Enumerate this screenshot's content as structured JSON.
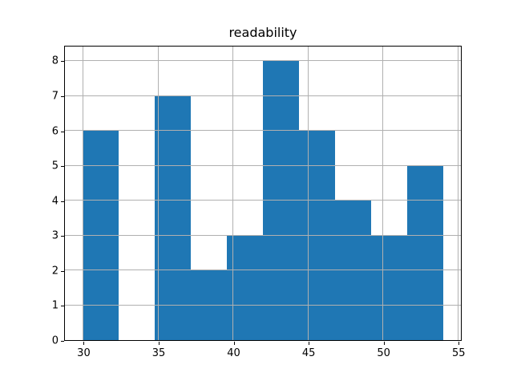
{
  "title": "readability",
  "colors": {
    "bar": "#1f77b4",
    "grid": "#b0b0b0",
    "spine": "#000000",
    "background": "#ffffff",
    "text": "#000000"
  },
  "chart_data": {
    "type": "bar",
    "subtype": "histogram",
    "title": "readability",
    "xlabel": "",
    "ylabel": "",
    "bin_edges": [
      30,
      32.4,
      34.8,
      37.2,
      39.6,
      42,
      44.4,
      46.8,
      49.2,
      51.6,
      54
    ],
    "counts": [
      6,
      0,
      7,
      2,
      3,
      8,
      6,
      4,
      3,
      5
    ],
    "x_ticks": [
      30,
      35,
      40,
      45,
      50,
      55
    ],
    "y_ticks": [
      0,
      1,
      2,
      3,
      4,
      5,
      6,
      7,
      8
    ],
    "xlim": [
      28.8,
      55.2
    ],
    "ylim": [
      0,
      8.4
    ],
    "grid": true,
    "grid_above_bars": true,
    "legend": null,
    "bar_color": "#1f77b4"
  }
}
